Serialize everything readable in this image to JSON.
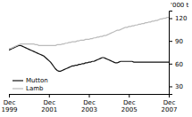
{
  "chart_data": {
    "type": "line",
    "y_label": "'000 t",
    "categories": [
      "Dec\n1999",
      null,
      null,
      null,
      null,
      null,
      null,
      null,
      null,
      null,
      null,
      null,
      null,
      null,
      null,
      null,
      null,
      null,
      null,
      null,
      null,
      null,
      null,
      null,
      "Dec\n2001",
      null,
      null,
      null,
      null,
      null,
      null,
      null,
      null,
      null,
      null,
      null,
      null,
      null,
      null,
      null,
      null,
      null,
      null,
      null,
      null,
      null,
      null,
      null,
      "Dec\n2003",
      null,
      null,
      null,
      null,
      null,
      null,
      null,
      null,
      null,
      null,
      null,
      null,
      null,
      null,
      null,
      null,
      null,
      null,
      null,
      null,
      null,
      null,
      null,
      "Dec\n2005",
      null,
      null,
      null,
      null,
      null,
      null,
      null,
      null,
      null,
      null,
      null,
      null,
      null,
      null,
      null,
      null,
      null,
      null,
      null,
      null,
      null,
      null,
      null,
      "Dec\n2007"
    ],
    "ylim": [
      20,
      130
    ],
    "yticks": [
      30,
      60,
      90,
      120
    ],
    "legend": "lower left",
    "series": [
      {
        "name": "Mutton",
        "color": "#111111",
        "values": [
          78,
          79,
          80,
          81,
          82,
          83,
          84,
          84,
          83,
          82,
          81,
          80,
          79,
          78,
          77,
          76,
          75,
          74,
          73,
          72,
          71,
          70,
          68,
          66,
          64,
          62,
          59,
          56,
          53,
          51,
          50,
          50,
          51,
          52,
          53,
          54,
          55,
          56,
          57,
          57,
          58,
          58,
          59,
          59,
          60,
          60,
          61,
          61,
          62,
          62,
          63,
          63,
          64,
          65,
          66,
          67,
          68,
          68,
          67,
          66,
          65,
          64,
          63,
          62,
          61,
          61,
          62,
          63,
          63,
          63,
          63,
          63,
          63,
          63,
          63,
          62,
          62,
          62,
          62,
          62,
          62,
          62,
          62,
          62,
          62,
          62,
          62,
          62,
          62,
          62,
          62,
          62,
          62,
          62,
          62,
          62,
          62
        ]
      },
      {
        "name": "Lamb",
        "color": "#bbbbbb",
        "values": [
          80,
          80,
          81,
          82,
          83,
          84,
          85,
          86,
          86,
          86,
          86,
          86,
          86,
          86,
          86,
          86,
          85,
          85,
          84,
          84,
          84,
          84,
          84,
          84,
          84,
          84,
          84,
          84,
          84,
          85,
          85,
          85,
          86,
          86,
          87,
          87,
          88,
          88,
          89,
          89,
          89,
          90,
          90,
          91,
          91,
          91,
          92,
          92,
          92,
          93,
          93,
          94,
          94,
          95,
          95,
          96,
          96,
          97,
          97,
          98,
          99,
          100,
          101,
          102,
          103,
          104,
          104,
          105,
          106,
          107,
          108,
          108,
          109,
          109,
          110,
          110,
          111,
          111,
          112,
          112,
          113,
          113,
          114,
          114,
          115,
          115,
          116,
          116,
          117,
          117,
          118,
          119,
          119,
          120,
          120,
          121,
          121
        ]
      }
    ]
  }
}
